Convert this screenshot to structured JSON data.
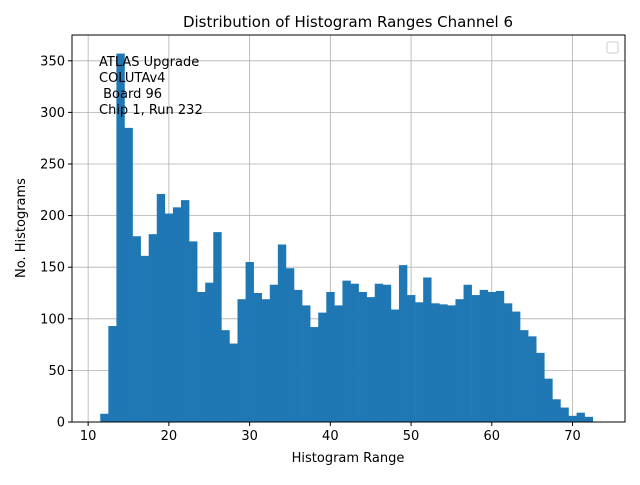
{
  "chart_data": {
    "type": "bar",
    "title": "Distribution of Histogram Ranges Channel 6",
    "xlabel": "Histogram Range",
    "ylabel": "No. Histograms",
    "xlim": [
      8.0,
      76.5
    ],
    "ylim": [
      0,
      375
    ],
    "xticks": [
      10,
      20,
      30,
      40,
      50,
      60,
      70
    ],
    "yticks": [
      0,
      50,
      100,
      150,
      200,
      250,
      300,
      350
    ],
    "grid": true,
    "legend": "top-right",
    "annotation": [
      "ATLAS Upgrade",
      "COLUTAv4",
      " Board 96",
      "Chip 1, Run 232"
    ],
    "bin_width": 1,
    "bin_start": 11.5,
    "values": [
      8,
      93,
      357,
      285,
      180,
      161,
      182,
      221,
      202,
      208,
      215,
      175,
      126,
      135,
      184,
      89,
      76,
      119,
      155,
      125,
      119,
      133,
      172,
      149,
      128,
      113,
      92,
      106,
      126,
      113,
      137,
      134,
      126,
      121,
      134,
      133,
      109,
      152,
      123,
      116,
      140,
      115,
      114,
      113,
      119,
      133,
      123,
      128,
      126,
      127,
      115,
      107,
      89,
      83,
      67,
      42,
      22,
      14,
      6,
      9,
      5
    ],
    "bar_color": "#1f77b4"
  }
}
